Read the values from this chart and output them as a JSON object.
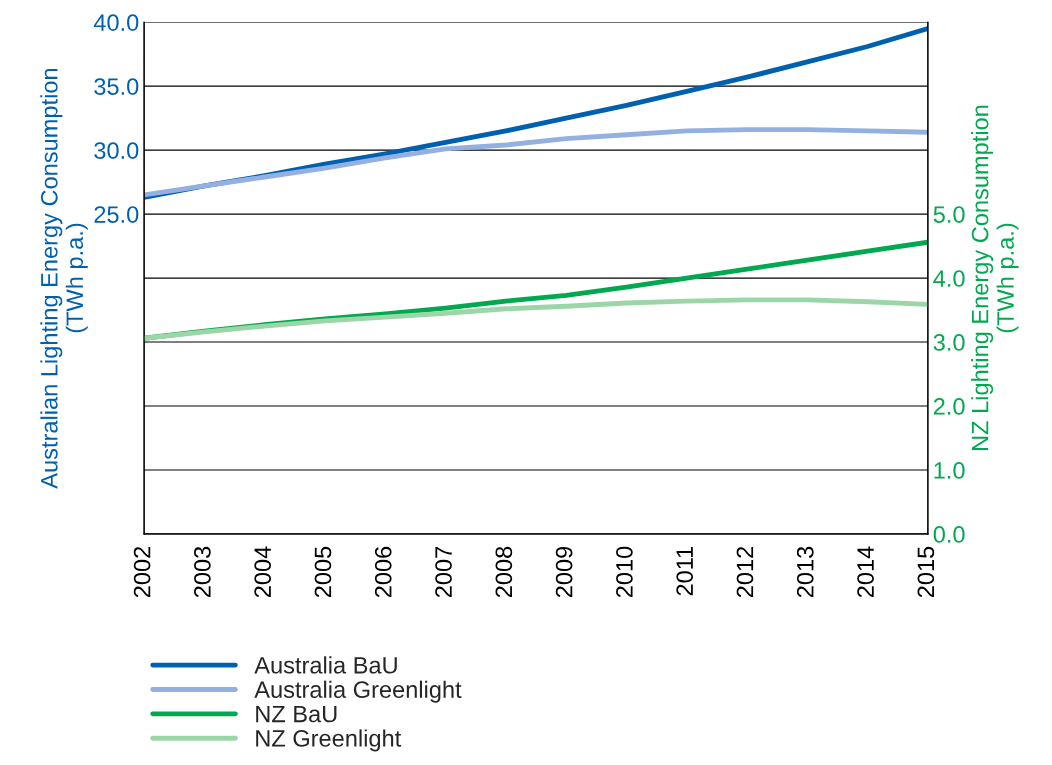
{
  "chart_data": {
    "type": "line",
    "ylabel": "Australian Lighting Energy Consumption\n(TWh p.a.)",
    "y2label": "NZ Lighting Energy Consumption\n(TWh p.a.)",
    "x": [
      2002,
      2003,
      2004,
      2005,
      2006,
      2007,
      2008,
      2009,
      2010,
      2011,
      2012,
      2013,
      2014,
      2015
    ],
    "xlim": [
      2002,
      2015
    ],
    "xticks": [
      2002,
      2003,
      2004,
      2005,
      2006,
      2007,
      2008,
      2009,
      2010,
      2011,
      2012,
      2013,
      2014,
      2015
    ],
    "ylim": [
      0,
      40
    ],
    "yticks": [
      {
        "value": 0,
        "label": null
      },
      {
        "value": 5,
        "label": null
      },
      {
        "value": 10,
        "label": null
      },
      {
        "value": 15,
        "label": null
      },
      {
        "value": 20,
        "label": null
      },
      {
        "value": 25,
        "label": "25.0"
      },
      {
        "value": 30,
        "label": "30.0"
      },
      {
        "value": 35,
        "label": "35.0"
      },
      {
        "value": 40,
        "label": "40.0"
      }
    ],
    "y2lim": [
      0,
      8
    ],
    "y2ticks": [
      {
        "value": 0,
        "label": "0.0"
      },
      {
        "value": 1,
        "label": "1.0"
      },
      {
        "value": 2,
        "label": "2.0"
      },
      {
        "value": 3,
        "label": "3.0"
      },
      {
        "value": 4,
        "label": "4.0"
      },
      {
        "value": 5,
        "label": "5.0"
      }
    ],
    "grid": "y",
    "legend": "bottom",
    "marker": "none",
    "line_style": "solid",
    "series": [
      {
        "name": "Australia BaU",
        "color": "#0060b0",
        "values": [
          26.3,
          27.2,
          28.0,
          28.9,
          29.7,
          30.6,
          31.5,
          32.5,
          33.5,
          34.6,
          35.7,
          36.9,
          38.1,
          39.5
        ]
      },
      {
        "name": "Australia Greenlight",
        "color": "#94b0e0",
        "values": [
          26.5,
          27.2,
          27.9,
          28.6,
          29.4,
          30.1,
          30.4,
          30.9,
          31.2,
          31.5,
          31.6,
          31.6,
          31.5,
          31.4
        ]
      },
      {
        "name": "NZ BaU",
        "color": "#00a84f",
        "axis": "y2",
        "values": [
          3.06,
          3.17,
          3.27,
          3.36,
          3.44,
          3.53,
          3.64,
          3.73,
          3.86,
          4.0,
          4.14,
          4.28,
          4.42,
          4.56
        ]
      },
      {
        "name": "NZ Greenlight",
        "color": "#9bd6a8",
        "axis": "y2",
        "values": [
          3.06,
          3.16,
          3.25,
          3.33,
          3.39,
          3.45,
          3.52,
          3.56,
          3.61,
          3.64,
          3.66,
          3.66,
          3.63,
          3.59
        ]
      }
    ]
  }
}
